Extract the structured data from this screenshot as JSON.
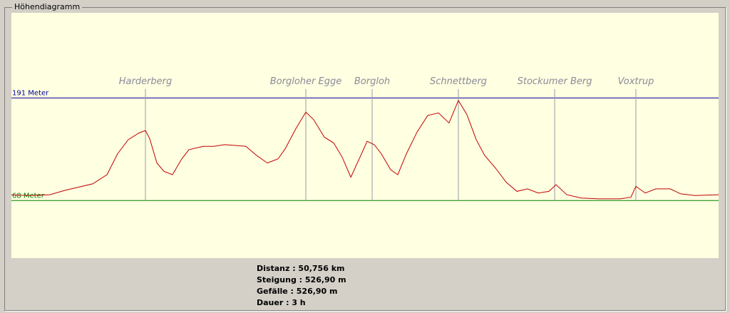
{
  "group_title": "Höhendiagramm",
  "chart_data": {
    "type": "line",
    "x": [
      0,
      1.23,
      2.76,
      3.79,
      4.81,
      5.83,
      6.86,
      7.62,
      8.39,
      9.16,
      9.62,
      9.93,
      10.44,
      10.95,
      11.56,
      12.23,
      12.74,
      13.76,
      14.53,
      15.3,
      16.07,
      16.83,
      17.6,
      18.37,
      19.14,
      19.65,
      20.41,
      21.13,
      21.69,
      22.46,
      23.13,
      23.74,
      24.36,
      25.02,
      25.53,
      26.04,
      26.55,
      27.22,
      27.73,
      28.35,
      29.11,
      29.88,
      30.65,
      31.41,
      32.08,
      32.69,
      33.36,
      33.97,
      34.74,
      35.51,
      36.28,
      37.04,
      37.81,
      38.58,
      39.09,
      39.86,
      40.88,
      42.16,
      43.69,
      44.46,
      44.82,
      45.49,
      46.25,
      47.28,
      48.04,
      49.07,
      50.76
    ],
    "series": [
      {
        "color": "#c00000",
        "values": [
          75,
          74,
          75,
          80,
          84,
          88,
          99,
          124,
          141,
          149,
          152,
          142,
          113,
          103,
          99,
          118,
          129,
          133,
          133,
          135,
          134,
          133,
          122,
          113,
          118,
          130,
          154,
          174,
          165,
          144,
          137,
          120,
          96,
          120,
          139,
          135,
          124,
          105,
          99,
          124,
          150,
          170,
          173,
          161,
          188,
          171,
          141,
          122,
          107,
          90,
          79,
          82,
          77,
          79,
          87,
          75,
          71,
          70,
          70,
          72,
          85,
          77,
          82,
          82,
          76,
          74,
          75
        ]
      }
    ],
    "xlim": [
      0,
      50.756
    ],
    "ylim": [
      -1,
      293
    ],
    "reference_lines": [
      {
        "value": 191,
        "label": "191 Meter",
        "color": "#0000a0"
      },
      {
        "value": 68,
        "label": "68 Meter",
        "color": "#008000"
      }
    ],
    "annotations": [
      {
        "label": "Harderberg",
        "x": 9.62
      },
      {
        "label": "Borgloher Egge",
        "x": 21.13
      },
      {
        "label": "Borgloh",
        "x": 25.89
      },
      {
        "label": "Schnettberg",
        "x": 32.08
      },
      {
        "label": "Stockumer Berg",
        "x": 38.99
      },
      {
        "label": "Voxtrup",
        "x": 44.82
      }
    ]
  },
  "stats": [
    "Distanz : 50,756 km",
    "Steigung : 526,90 m",
    "Gefälle : 526,90 m",
    "Dauer : 3 h"
  ]
}
